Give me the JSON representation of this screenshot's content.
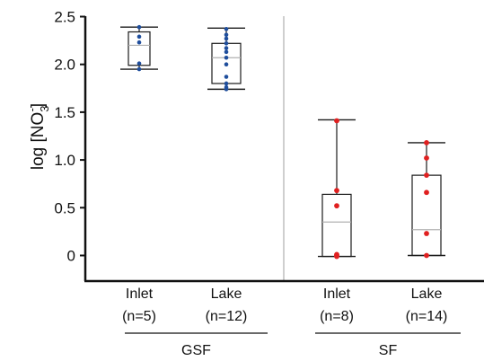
{
  "chart_data": {
    "type": "box",
    "ylabel": "log [NO3-]",
    "ylabel_parts": {
      "base": "log [NO",
      "sub": "3",
      "sup": "-",
      "close": "]"
    },
    "ylim": [
      -0.3,
      2.5
    ],
    "yticks": [
      0,
      0.5,
      1.0,
      1.5,
      2.0,
      2.5
    ],
    "ytick_labels": [
      "0",
      "0.5",
      "1.0",
      "1.5",
      "2.0",
      "2.5"
    ],
    "groups": [
      {
        "label": "GSF",
        "point_color": "#1f4e9c"
      },
      {
        "label": "SF",
        "point_color": "#e02020"
      }
    ],
    "boxes": [
      {
        "group": 0,
        "name": "Inlet",
        "n_label": "(n=5)",
        "whisker_low": 1.95,
        "q1": 1.99,
        "median": 2.2,
        "q3": 2.34,
        "whisker_high": 2.39,
        "points": [
          1.95,
          2.01,
          2.23,
          2.29,
          2.39
        ]
      },
      {
        "group": 0,
        "name": "Lake",
        "n_label": "(n=12)",
        "whisker_low": 1.74,
        "q1": 1.8,
        "median": 2.07,
        "q3": 2.22,
        "whisker_high": 2.38,
        "points": [
          1.74,
          1.76,
          1.8,
          1.87,
          2.0,
          2.07,
          2.13,
          2.17,
          2.22,
          2.27,
          2.31,
          2.37
        ]
      },
      {
        "group": 1,
        "name": "Inlet",
        "n_label": "(n=8)",
        "whisker_low": -0.01,
        "q1": -0.01,
        "median": 0.35,
        "q3": 0.64,
        "whisker_high": 1.42,
        "points": [
          -0.01,
          0.0,
          0.01,
          0.52,
          0.68,
          1.41
        ]
      },
      {
        "group": 1,
        "name": "Lake",
        "n_label": "(n=14)",
        "whisker_low": 0.0,
        "q1": 0.0,
        "median": 0.27,
        "q3": 0.84,
        "whisker_high": 1.18,
        "points": [
          0.0,
          0.23,
          0.66,
          0.84,
          1.02,
          1.18
        ]
      }
    ],
    "colors": {
      "box": "#1a1a1a",
      "median": "#b0b0b0",
      "axis": "#111111",
      "divider": "#b5b5b5"
    }
  }
}
